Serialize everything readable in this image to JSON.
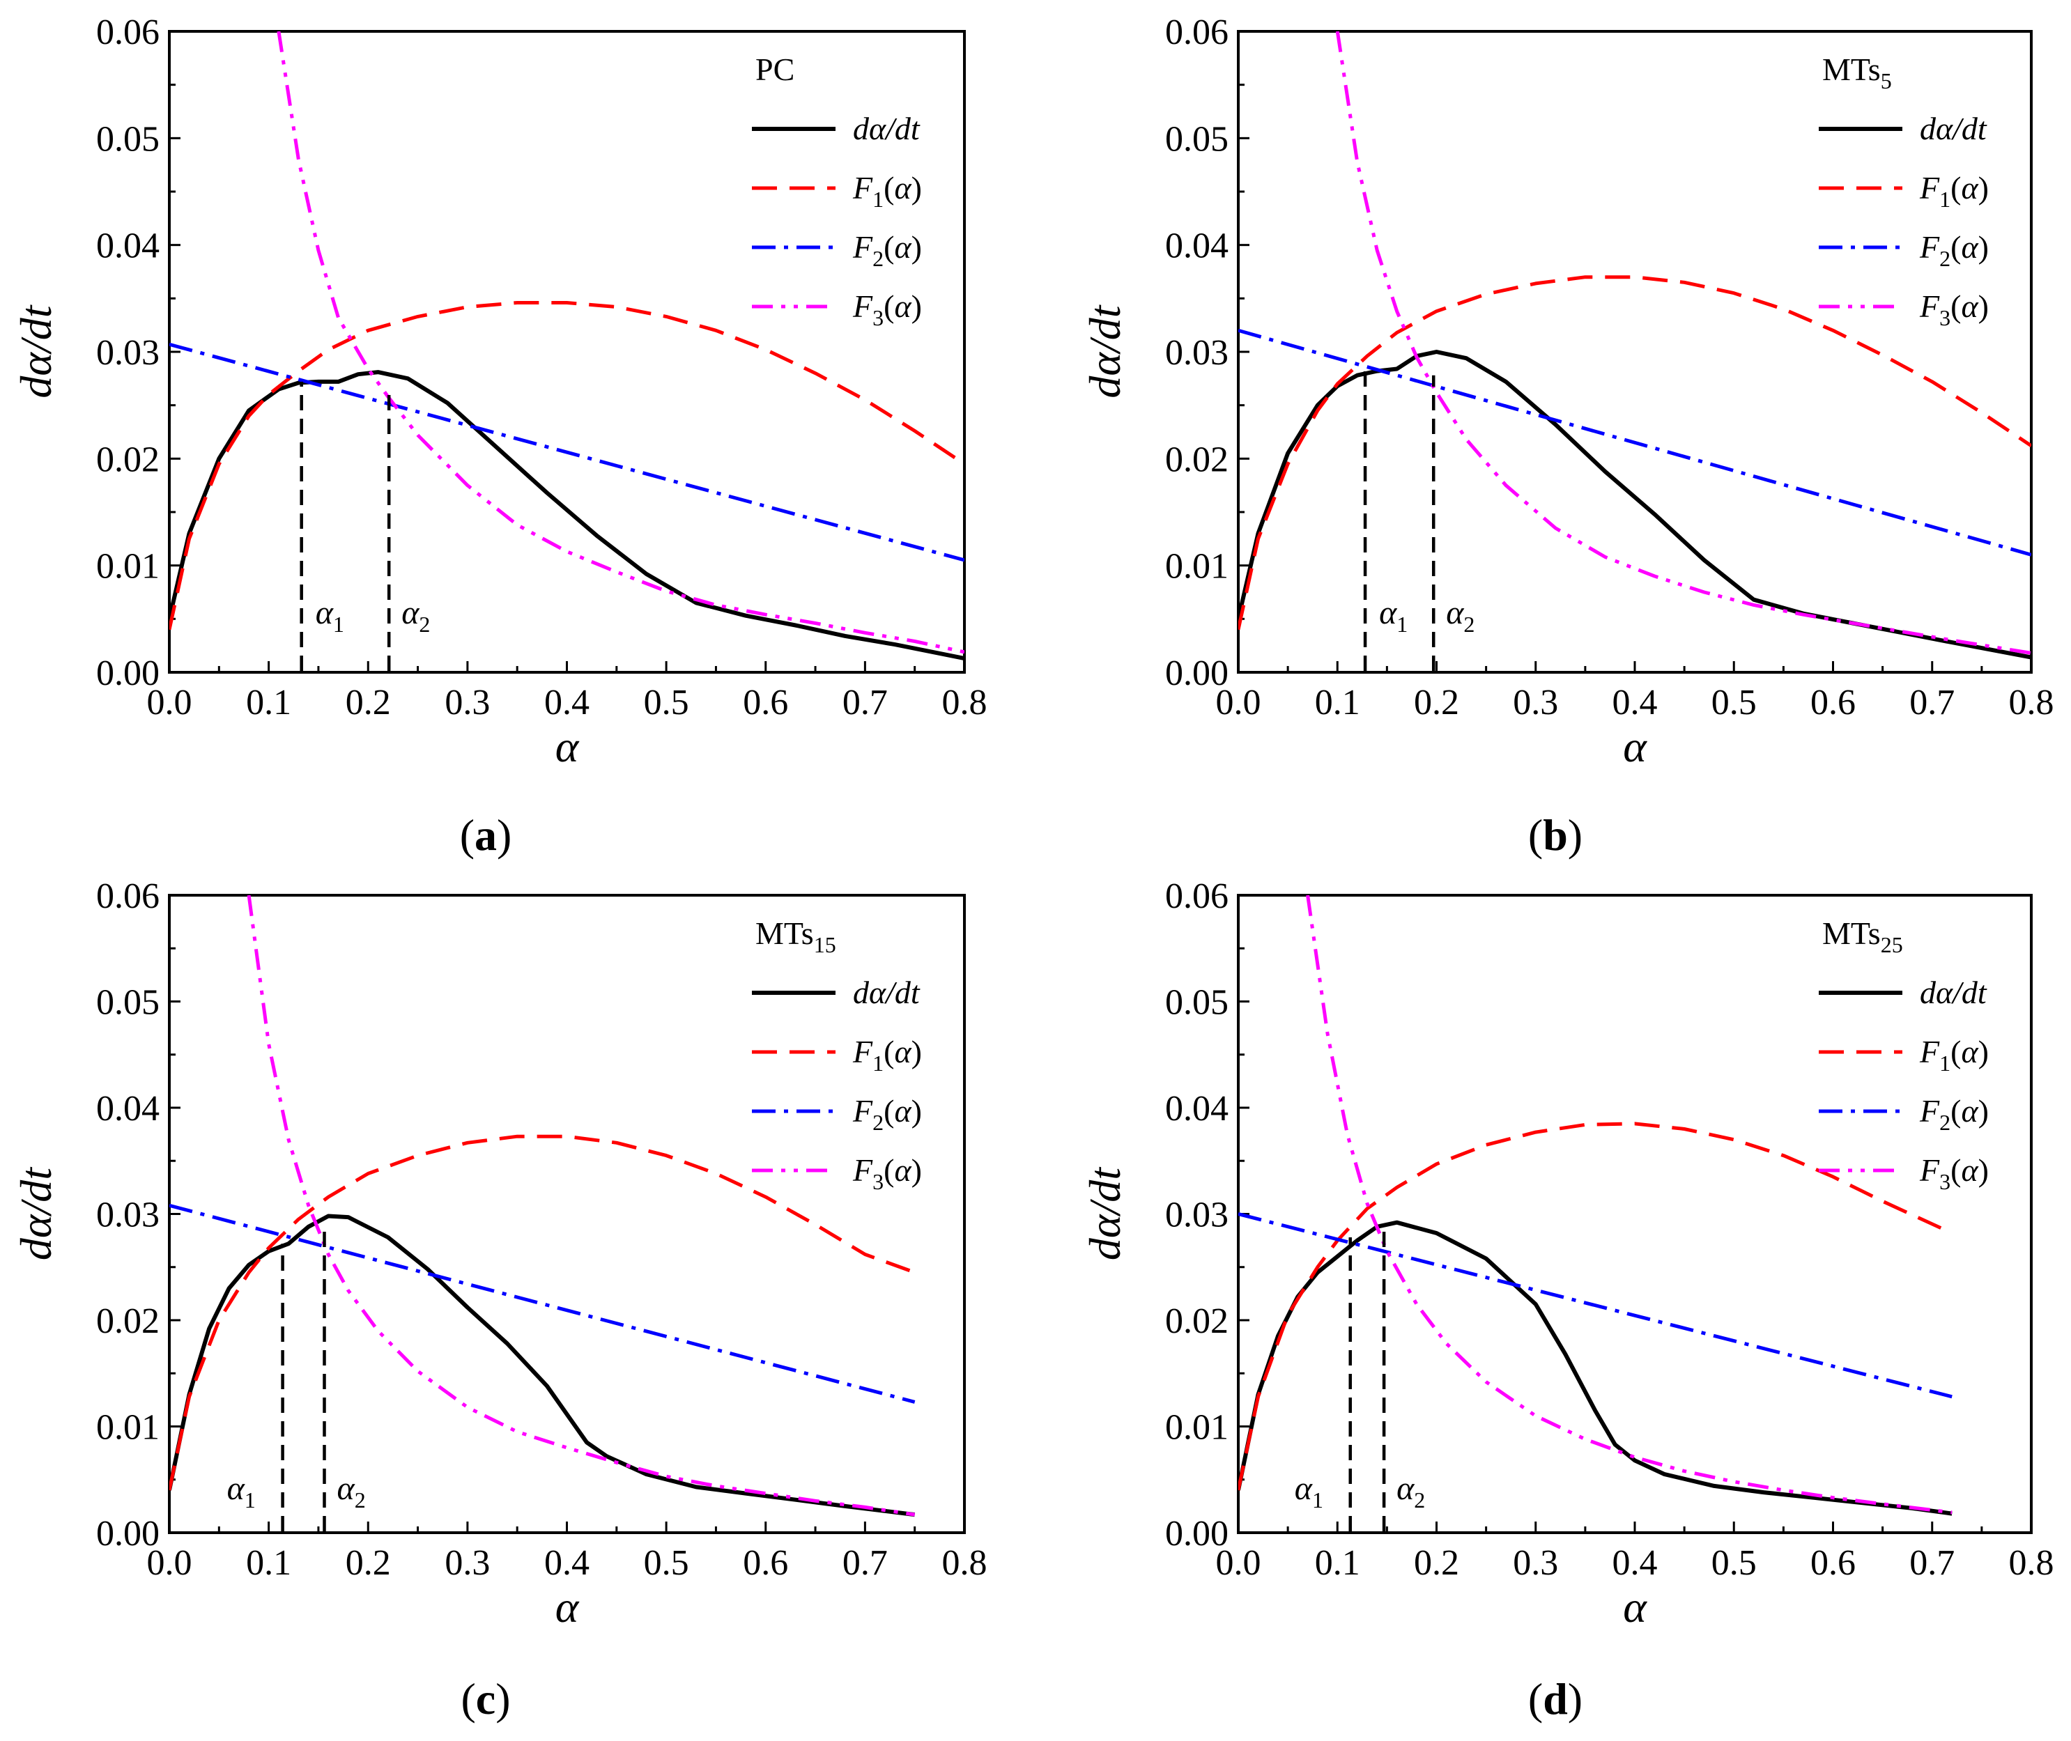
{
  "chart_data": [
    {
      "type": "line",
      "panel_label": "a",
      "sample": "PC",
      "xlabel": "α",
      "ylabel": "dα/dt",
      "xlim": [
        0.0,
        0.8
      ],
      "ylim": [
        0.0,
        0.06
      ],
      "xticks": [
        "0.0",
        "0.1",
        "0.2",
        "0.3",
        "0.4",
        "0.5",
        "0.6",
        "0.7",
        "0.8"
      ],
      "yticks": [
        "0.00",
        "0.01",
        "0.02",
        "0.03",
        "0.04",
        "0.05",
        "0.06"
      ],
      "legend_position": "top-right",
      "markers": [
        {
          "name": "α",
          "sub": "1",
          "x": 0.133,
          "y_top": 0.0272
        },
        {
          "name": "α",
          "sub": "2",
          "x": 0.221,
          "y_top": 0.0262
        }
      ],
      "series": [
        {
          "name": "dα/dt",
          "color": "#000000",
          "style": "solid",
          "x": [
            0.0,
            0.02,
            0.05,
            0.08,
            0.11,
            0.13,
            0.15,
            0.17,
            0.19,
            0.21,
            0.24,
            0.28,
            0.33,
            0.38,
            0.43,
            0.48,
            0.53,
            0.58,
            0.63,
            0.68,
            0.73,
            0.8
          ],
          "y": [
            0.005,
            0.013,
            0.02,
            0.0245,
            0.0265,
            0.0271,
            0.0272,
            0.0272,
            0.0279,
            0.0281,
            0.0275,
            0.0252,
            0.021,
            0.0168,
            0.0128,
            0.0092,
            0.0065,
            0.0053,
            0.0044,
            0.0034,
            0.0026,
            0.0013
          ]
        },
        {
          "name": "F",
          "sub": "1",
          "color": "#ff0000",
          "style": "dashed",
          "x": [
            0.0,
            0.02,
            0.05,
            0.08,
            0.1,
            0.13,
            0.16,
            0.2,
            0.25,
            0.3,
            0.35,
            0.4,
            0.45,
            0.5,
            0.55,
            0.6,
            0.65,
            0.7,
            0.75,
            0.8
          ],
          "y": [
            0.004,
            0.0125,
            0.0195,
            0.024,
            0.026,
            0.0282,
            0.0302,
            0.032,
            0.0333,
            0.0342,
            0.0346,
            0.0346,
            0.0342,
            0.0333,
            0.032,
            0.0302,
            0.028,
            0.0255,
            0.0226,
            0.0195
          ]
        },
        {
          "name": "F",
          "sub": "2",
          "color": "#0000ff",
          "style": "dashdot",
          "x": [
            0.0,
            0.8
          ],
          "y": [
            0.0307,
            0.0105
          ]
        },
        {
          "name": "F",
          "sub": "3",
          "color": "#ff00ff",
          "style": "dashdotdot",
          "x": [
            0.11,
            0.13,
            0.15,
            0.17,
            0.2,
            0.22,
            0.25,
            0.3,
            0.35,
            0.4,
            0.45,
            0.5,
            0.55,
            0.6,
            0.65,
            0.7,
            0.75,
            0.8
          ],
          "y": [
            0.06,
            0.048,
            0.0395,
            0.0332,
            0.0284,
            0.0258,
            0.0222,
            0.0175,
            0.0138,
            0.0113,
            0.0094,
            0.0076,
            0.0063,
            0.0054,
            0.0046,
            0.0037,
            0.0029,
            0.0019
          ]
        }
      ]
    },
    {
      "type": "line",
      "panel_label": "b",
      "sample": "MTs",
      "sample_sub": "5",
      "xlabel": "α",
      "ylabel": "dα/dt",
      "xlim": [
        0.0,
        0.8
      ],
      "ylim": [
        0.0,
        0.06
      ],
      "xticks": [
        "0.0",
        "0.1",
        "0.2",
        "0.3",
        "0.4",
        "0.5",
        "0.6",
        "0.7",
        "0.8"
      ],
      "yticks": [
        "0.00",
        "0.01",
        "0.02",
        "0.03",
        "0.04",
        "0.05",
        "0.06"
      ],
      "legend_position": "top-right",
      "markers": [
        {
          "name": "α",
          "sub": "1",
          "x": 0.128,
          "y_top": 0.0285
        },
        {
          "name": "α",
          "sub": "2",
          "x": 0.197,
          "y_top": 0.0278
        }
      ],
      "series": [
        {
          "name": "dα/dt",
          "color": "#000000",
          "style": "solid",
          "x": [
            0.0,
            0.02,
            0.05,
            0.08,
            0.1,
            0.12,
            0.14,
            0.16,
            0.18,
            0.2,
            0.23,
            0.27,
            0.32,
            0.37,
            0.42,
            0.47,
            0.52,
            0.57,
            0.62,
            0.67,
            0.72,
            0.8
          ],
          "y": [
            0.005,
            0.013,
            0.0205,
            0.025,
            0.0268,
            0.0278,
            0.0282,
            0.0284,
            0.0296,
            0.03,
            0.0294,
            0.0272,
            0.0232,
            0.0188,
            0.0148,
            0.0105,
            0.0068,
            0.0055,
            0.0046,
            0.0037,
            0.0028,
            0.0014
          ]
        },
        {
          "name": "F",
          "sub": "1",
          "color": "#ff0000",
          "style": "dashed",
          "x": [
            0.0,
            0.02,
            0.05,
            0.08,
            0.1,
            0.13,
            0.16,
            0.2,
            0.25,
            0.3,
            0.35,
            0.4,
            0.45,
            0.5,
            0.55,
            0.6,
            0.65,
            0.7,
            0.75,
            0.8
          ],
          "y": [
            0.004,
            0.0125,
            0.0195,
            0.0245,
            0.027,
            0.0296,
            0.0318,
            0.0338,
            0.0354,
            0.0364,
            0.037,
            0.037,
            0.0365,
            0.0355,
            0.034,
            0.032,
            0.0297,
            0.0272,
            0.0243,
            0.0212
          ]
        },
        {
          "name": "F",
          "sub": "2",
          "color": "#0000ff",
          "style": "dashdot",
          "x": [
            0.0,
            0.8
          ],
          "y": [
            0.032,
            0.011
          ]
        },
        {
          "name": "F",
          "sub": "3",
          "color": "#ff00ff",
          "style": "dashdotdot",
          "x": [
            0.1,
            0.12,
            0.14,
            0.16,
            0.18,
            0.2,
            0.23,
            0.27,
            0.32,
            0.37,
            0.42,
            0.47,
            0.52,
            0.57,
            0.62,
            0.67,
            0.72,
            0.8
          ],
          "y": [
            0.06,
            0.0478,
            0.0395,
            0.0338,
            0.0295,
            0.0262,
            0.0218,
            0.0175,
            0.0135,
            0.0108,
            0.009,
            0.0075,
            0.0063,
            0.0054,
            0.0046,
            0.0038,
            0.003,
            0.0018
          ]
        }
      ]
    },
    {
      "type": "line",
      "panel_label": "c",
      "sample": "MTs",
      "sample_sub": "15",
      "xlabel": "α",
      "ylabel": "dα/dt",
      "xlim": [
        0.0,
        0.8
      ],
      "ylim": [
        0.0,
        0.06
      ],
      "xticks": [
        "0.0",
        "0.1",
        "0.2",
        "0.3",
        "0.4",
        "0.5",
        "0.6",
        "0.7",
        "0.8"
      ],
      "yticks": [
        "0.00",
        "0.01",
        "0.02",
        "0.03",
        "0.04",
        "0.05",
        "0.06"
      ],
      "legend_position": "top-right",
      "markers": [
        {
          "name": "α",
          "sub": "1",
          "x": 0.114,
          "y_top": 0.0272
        },
        {
          "name": "α",
          "sub": "2",
          "x": 0.156,
          "y_top": 0.0285
        }
      ],
      "series": [
        {
          "name": "dα/dt",
          "color": "#000000",
          "style": "solid",
          "x": [
            0.0,
            0.02,
            0.04,
            0.06,
            0.08,
            0.1,
            0.12,
            0.14,
            0.16,
            0.18,
            0.22,
            0.26,
            0.3,
            0.34,
            0.38,
            0.42,
            0.44,
            0.48,
            0.53,
            0.58,
            0.63,
            0.68,
            0.75
          ],
          "y": [
            0.004,
            0.013,
            0.0192,
            0.023,
            0.0252,
            0.0265,
            0.0272,
            0.0288,
            0.0298,
            0.0297,
            0.0278,
            0.0248,
            0.0212,
            0.0178,
            0.0138,
            0.0085,
            0.0072,
            0.0055,
            0.0043,
            0.0037,
            0.0031,
            0.0025,
            0.0017
          ]
        },
        {
          "name": "F",
          "sub": "1",
          "color": "#ff0000",
          "style": "dashed",
          "x": [
            0.0,
            0.02,
            0.05,
            0.08,
            0.1,
            0.13,
            0.16,
            0.2,
            0.25,
            0.3,
            0.35,
            0.4,
            0.45,
            0.5,
            0.55,
            0.6,
            0.65,
            0.7,
            0.75
          ],
          "y": [
            0.004,
            0.0128,
            0.02,
            0.0245,
            0.0268,
            0.0295,
            0.0316,
            0.0338,
            0.0355,
            0.0367,
            0.0373,
            0.0373,
            0.0367,
            0.0355,
            0.0338,
            0.0316,
            0.029,
            0.0262,
            0.0245
          ]
        },
        {
          "name": "F",
          "sub": "2",
          "color": "#0000ff",
          "style": "dashdot",
          "x": [
            0.0,
            0.75
          ],
          "y": [
            0.0308,
            0.0123
          ]
        },
        {
          "name": "F",
          "sub": "3",
          "color": "#ff00ff",
          "style": "dashdotdot",
          "x": [
            0.08,
            0.1,
            0.12,
            0.14,
            0.16,
            0.18,
            0.21,
            0.25,
            0.3,
            0.35,
            0.4,
            0.45,
            0.5,
            0.55,
            0.6,
            0.65,
            0.7,
            0.75
          ],
          "y": [
            0.06,
            0.046,
            0.037,
            0.0308,
            0.0262,
            0.0228,
            0.019,
            0.0152,
            0.0118,
            0.0095,
            0.008,
            0.0066,
            0.0053,
            0.0044,
            0.0037,
            0.003,
            0.0024,
            0.0017
          ]
        }
      ]
    },
    {
      "type": "line",
      "panel_label": "d",
      "sample": "MTs",
      "sample_sub": "25",
      "xlabel": "α",
      "ylabel": "dα/dt",
      "xlim": [
        0.0,
        0.8
      ],
      "ylim": [
        0.0,
        0.06
      ],
      "xticks": [
        "0.0",
        "0.1",
        "0.2",
        "0.3",
        "0.4",
        "0.5",
        "0.6",
        "0.7",
        "0.8"
      ],
      "yticks": [
        "0.00",
        "0.01",
        "0.02",
        "0.03",
        "0.04",
        "0.05",
        "0.06"
      ],
      "legend_position": "top-right",
      "markers": [
        {
          "name": "α",
          "sub": "1",
          "x": 0.113,
          "y_top": 0.0278
        },
        {
          "name": "α",
          "sub": "2",
          "x": 0.147,
          "y_top": 0.029
        }
      ],
      "series": [
        {
          "name": "dα/dt",
          "color": "#000000",
          "style": "solid",
          "x": [
            0.0,
            0.02,
            0.04,
            0.06,
            0.08,
            0.1,
            0.12,
            0.14,
            0.16,
            0.2,
            0.25,
            0.3,
            0.33,
            0.36,
            0.38,
            0.4,
            0.43,
            0.48,
            0.53,
            0.58,
            0.63,
            0.68,
            0.72
          ],
          "y": [
            0.004,
            0.013,
            0.0185,
            0.0222,
            0.0245,
            0.026,
            0.0275,
            0.0288,
            0.0292,
            0.0282,
            0.0258,
            0.0215,
            0.0168,
            0.0115,
            0.0083,
            0.0068,
            0.0055,
            0.0044,
            0.0038,
            0.0033,
            0.0028,
            0.0023,
            0.0018
          ]
        },
        {
          "name": "F",
          "sub": "1",
          "color": "#ff0000",
          "style": "dashed",
          "x": [
            0.0,
            0.02,
            0.05,
            0.08,
            0.1,
            0.13,
            0.16,
            0.2,
            0.25,
            0.3,
            0.35,
            0.4,
            0.45,
            0.5,
            0.55,
            0.6,
            0.65,
            0.72
          ],
          "y": [
            0.004,
            0.0128,
            0.0205,
            0.025,
            0.0275,
            0.0305,
            0.0325,
            0.0347,
            0.0365,
            0.0377,
            0.0384,
            0.0385,
            0.038,
            0.037,
            0.0355,
            0.0335,
            0.0312,
            0.0282
          ]
        },
        {
          "name": "F",
          "sub": "2",
          "color": "#0000ff",
          "style": "dashdot",
          "x": [
            0.0,
            0.72
          ],
          "y": [
            0.03,
            0.0128
          ]
        },
        {
          "name": "F",
          "sub": "3",
          "color": "#ff00ff",
          "style": "dashdotdot",
          "x": [
            0.07,
            0.09,
            0.11,
            0.13,
            0.15,
            0.18,
            0.21,
            0.25,
            0.3,
            0.35,
            0.4,
            0.45,
            0.5,
            0.55,
            0.6,
            0.65,
            0.72
          ],
          "y": [
            0.06,
            0.047,
            0.0375,
            0.031,
            0.0265,
            0.0215,
            0.0178,
            0.0142,
            0.011,
            0.0088,
            0.0071,
            0.0058,
            0.0048,
            0.004,
            0.0033,
            0.0027,
            0.0019
          ]
        }
      ]
    }
  ]
}
